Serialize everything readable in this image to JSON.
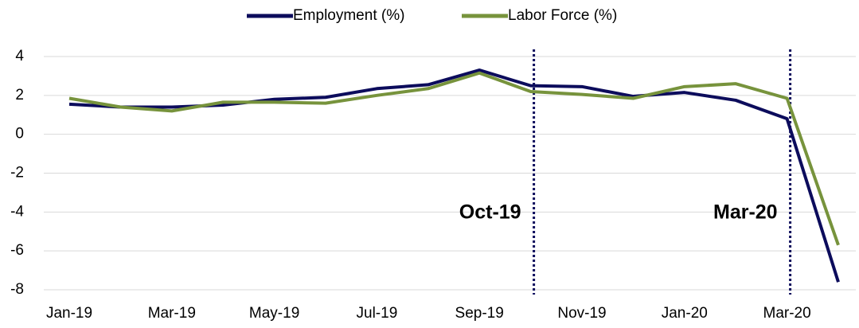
{
  "chart_data": {
    "type": "line",
    "categories": [
      "Jan-19",
      null,
      "Mar-19",
      null,
      "May-19",
      null,
      "Jul-19",
      null,
      "Sep-19",
      null,
      "Nov-19",
      null,
      "Jan-20",
      null,
      "Mar-20",
      null
    ],
    "series": [
      {
        "name": "Employment (%)",
        "color": "#0c0c5c",
        "values": [
          1.55,
          1.4,
          1.4,
          1.5,
          1.8,
          1.9,
          2.35,
          2.55,
          3.3,
          2.5,
          2.45,
          1.95,
          2.15,
          1.75,
          0.8,
          -7.6
        ]
      },
      {
        "name": "Labor Force (%)",
        "color": "#77933c",
        "values": [
          1.85,
          1.4,
          1.2,
          1.65,
          1.65,
          1.6,
          2.0,
          2.35,
          3.15,
          2.2,
          2.05,
          1.85,
          2.45,
          2.6,
          1.85,
          -5.7
        ]
      }
    ],
    "ylim": [
      -8,
      4
    ],
    "yticks": [
      -8,
      -6,
      -4,
      -2,
      0,
      2,
      4
    ],
    "grid": true,
    "legend": "top",
    "annotations": [
      {
        "text": "Oct-19",
        "x": 9
      },
      {
        "text": "Mar-20",
        "x": 14
      }
    ]
  }
}
